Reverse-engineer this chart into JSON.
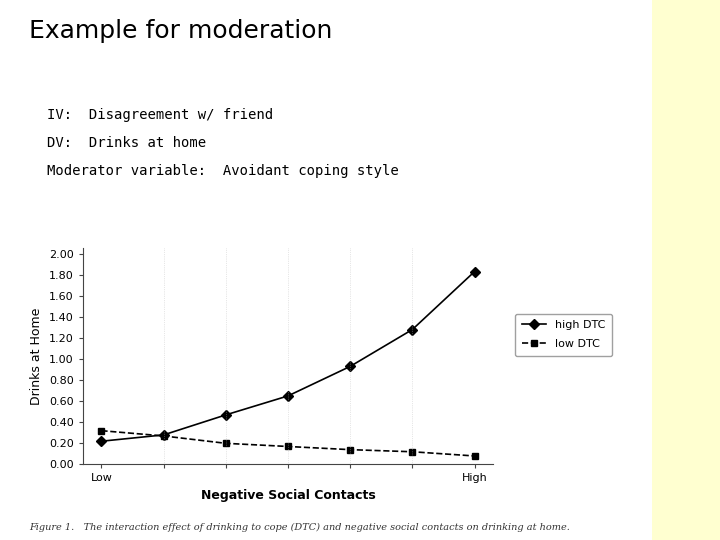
{
  "title": "Example for moderation",
  "subtitle_lines": [
    "IV:  Disagreement w/ friend",
    "DV:  Drinks at home",
    "Moderator variable:  Avoidant coping style"
  ],
  "figure_caption": "Figure 1.   The interaction effect of drinking to cope (DTC) and negative social contacts on drinking at home.",
  "xlabel": "Negative Social Contacts",
  "ylabel": "Drinks at Home",
  "ytick_values": [
    0.0,
    0.2,
    0.4,
    0.6,
    0.8,
    1.0,
    1.2,
    1.4,
    1.6,
    1.8,
    2.0
  ],
  "x_values": [
    0,
    1,
    2,
    3,
    4,
    5,
    6
  ],
  "high_dtc": [
    0.22,
    0.28,
    0.47,
    0.65,
    0.93,
    1.28,
    1.83
  ],
  "low_dtc": [
    0.32,
    0.27,
    0.2,
    0.17,
    0.14,
    0.12,
    0.08
  ],
  "high_dtc_label": "high DTC",
  "low_dtc_label": "low DTC",
  "bg_color": "#FFFFFF",
  "right_strip_color": "#FFFFD0",
  "plot_bg_color": "#FFFFFF",
  "line_color": "#000000",
  "ylim": [
    0.0,
    2.05
  ],
  "xlim": [
    -0.3,
    6.3
  ],
  "title_fontsize": 18,
  "subtitle_fontsize": 10,
  "caption_fontsize": 7,
  "axis_label_fontsize": 9,
  "tick_fontsize": 8
}
